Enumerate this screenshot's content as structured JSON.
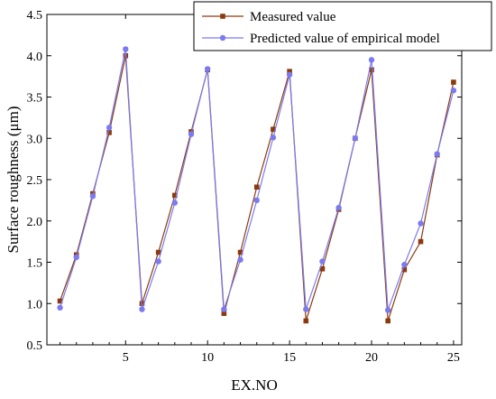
{
  "chart_data": {
    "type": "line",
    "xlabel": "EX.NO",
    "ylabel": "Surface roughness (μm)",
    "xlim": [
      0.2,
      25.5
    ],
    "ylim": [
      0.5,
      4.5
    ],
    "xticks": [
      5,
      10,
      15,
      20,
      25
    ],
    "yticks": [
      0.5,
      1.0,
      1.5,
      2.0,
      2.5,
      3.0,
      3.5,
      4.0,
      4.5
    ],
    "xtick_labels": [
      "5",
      "10",
      "15",
      "20",
      "25"
    ],
    "ytick_labels": [
      "0.5",
      "1.0",
      "1.5",
      "2.0",
      "2.5",
      "3.0",
      "3.5",
      "4.0",
      "4.5"
    ],
    "grid": false,
    "legend_position": "top-right",
    "x": [
      1,
      2,
      3,
      4,
      5,
      6,
      7,
      8,
      9,
      10,
      11,
      12,
      13,
      14,
      15,
      16,
      17,
      18,
      19,
      20,
      21,
      22,
      23,
      24,
      25
    ],
    "series": [
      {
        "name": "Measured value",
        "color": "#8B3A0F",
        "marker": "square",
        "values": [
          1.03,
          1.59,
          2.33,
          3.07,
          4.0,
          1.0,
          1.62,
          2.31,
          3.08,
          3.83,
          0.88,
          1.62,
          2.41,
          3.11,
          3.81,
          0.79,
          1.42,
          2.14,
          3.0,
          3.83,
          0.79,
          1.41,
          1.75,
          2.8,
          3.68
        ]
      },
      {
        "name": "Predicted value of empirical model",
        "color": "#7B7BF0",
        "marker": "circle",
        "values": [
          0.95,
          1.56,
          2.3,
          3.13,
          4.08,
          0.93,
          1.51,
          2.22,
          3.05,
          3.84,
          0.93,
          1.53,
          2.25,
          3.01,
          3.77,
          0.93,
          1.51,
          2.16,
          3.0,
          3.95,
          0.92,
          1.47,
          1.97,
          2.81,
          3.58
        ]
      }
    ]
  }
}
